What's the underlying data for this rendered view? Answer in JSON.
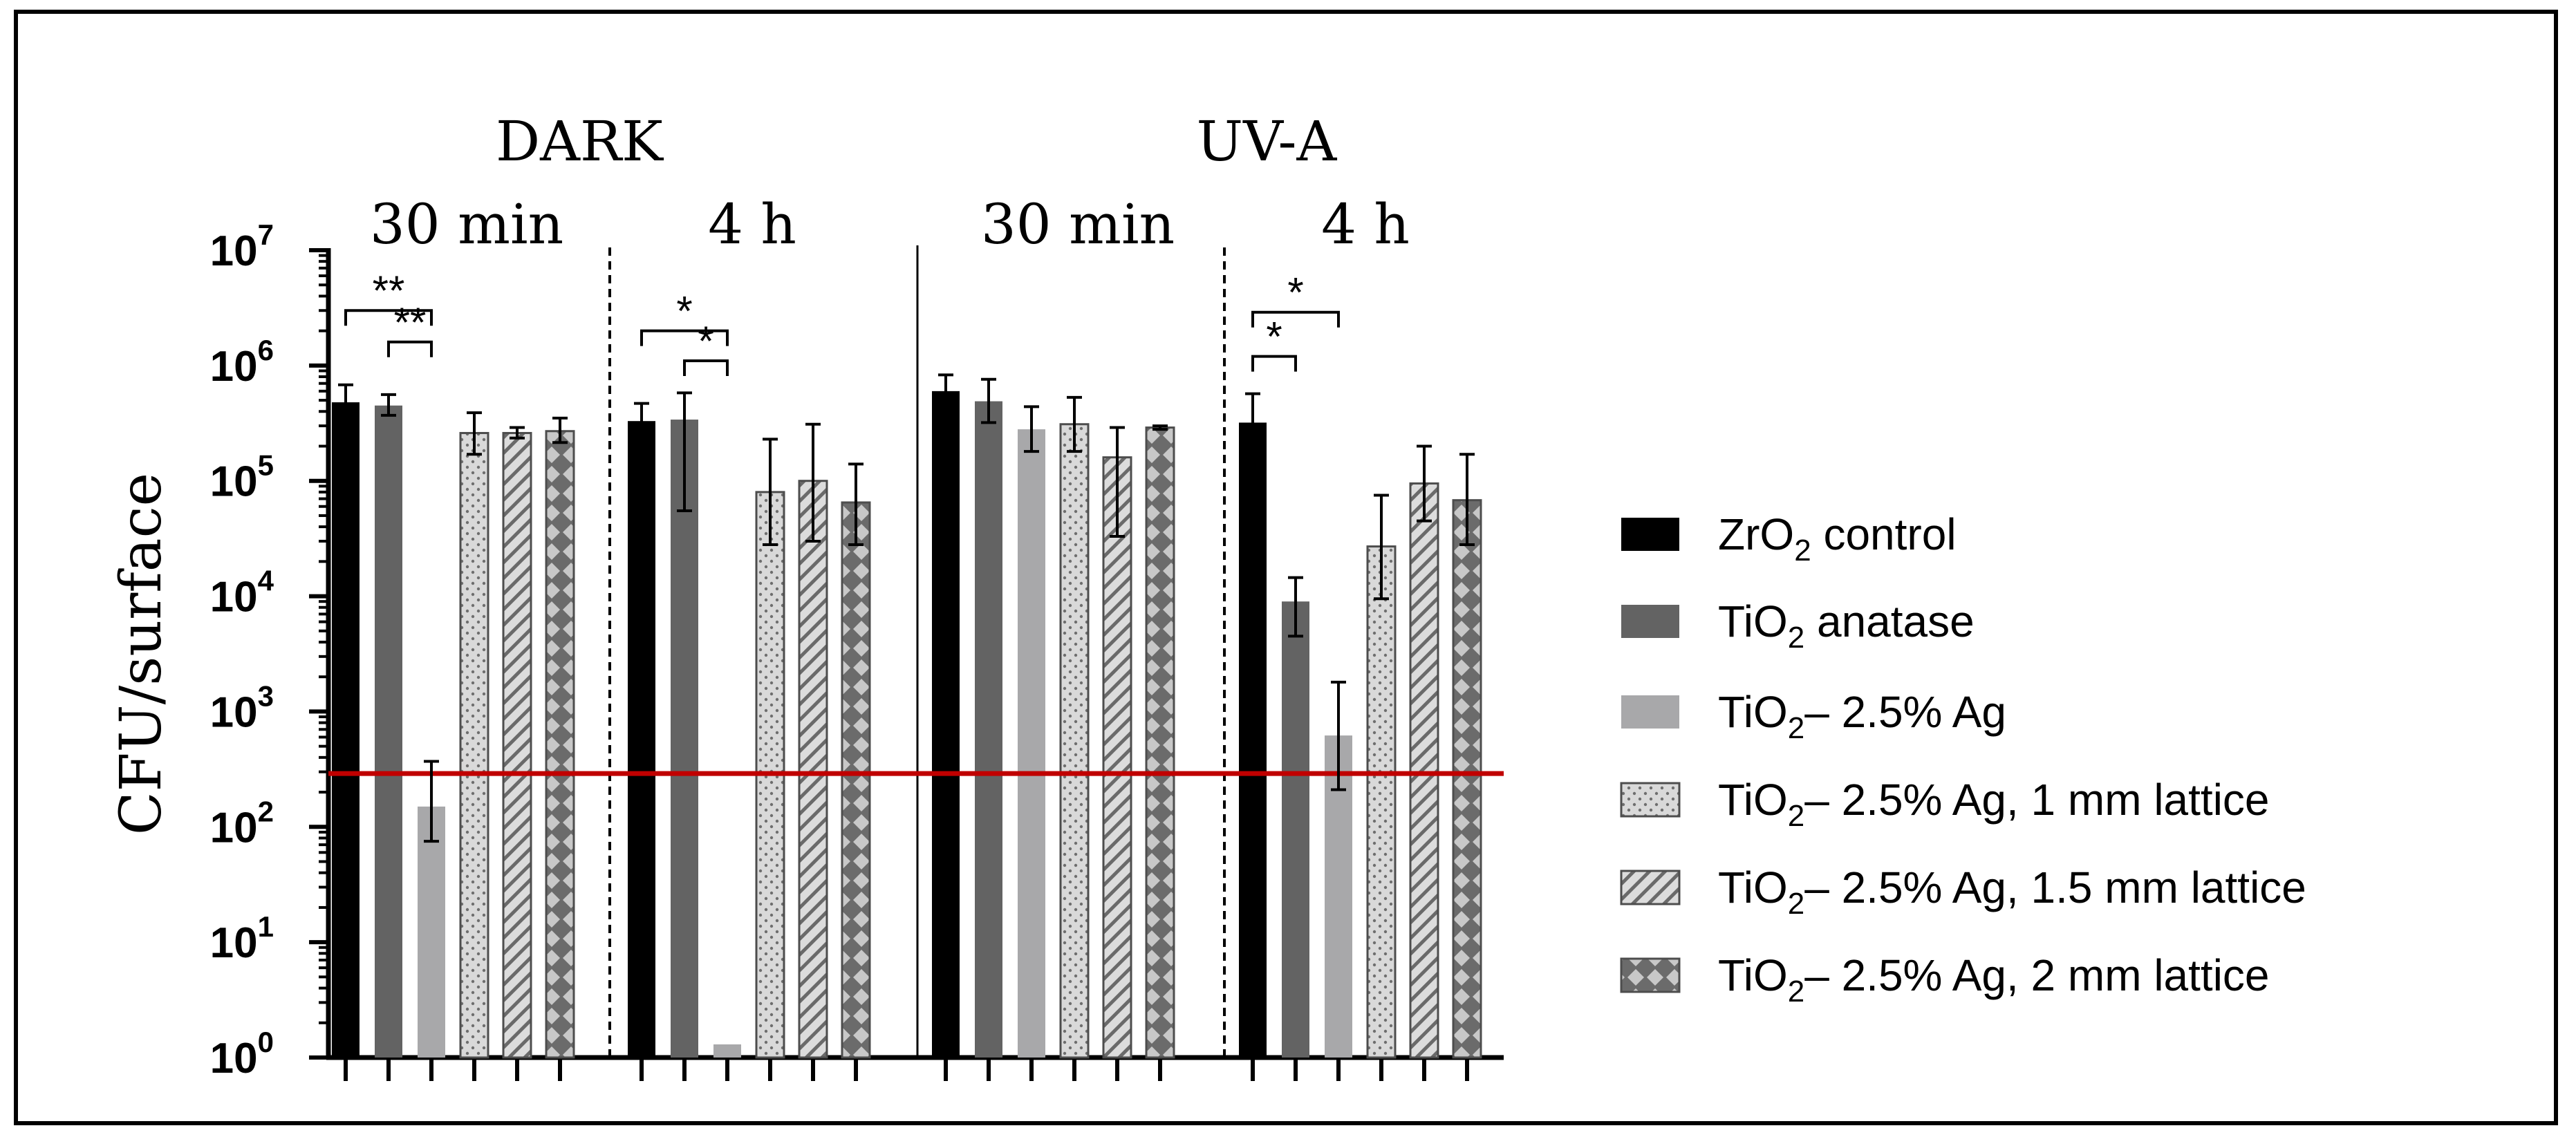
{
  "chart_data": {
    "type": "bar",
    "scale": "log",
    "ylim": [
      1,
      10000000
    ],
    "ylabel": "CFU/surface",
    "y_ticks": [
      {
        "base": "10",
        "exp": "0"
      },
      {
        "base": "10",
        "exp": "1"
      },
      {
        "base": "10",
        "exp": "2"
      },
      {
        "base": "10",
        "exp": "3"
      },
      {
        "base": "10",
        "exp": "4"
      },
      {
        "base": "10",
        "exp": "5"
      },
      {
        "base": "10",
        "exp": "6"
      },
      {
        "base": "10",
        "exp": "7"
      }
    ],
    "conditions": [
      {
        "label": "DARK",
        "groups": [
          "dark_30",
          "dark_4h"
        ]
      },
      {
        "label": "UV-A",
        "groups": [
          "uva_30",
          "uva_4h"
        ]
      }
    ],
    "groups": [
      {
        "id": "dark_30",
        "label": "30 min",
        "values": [
          480000,
          450000,
          150,
          260000,
          260000,
          270000
        ],
        "err_hi": [
          680000,
          560000,
          370,
          390000,
          290000,
          350000
        ],
        "err_lo": [
          380000,
          370000,
          75,
          170000,
          235000,
          215000
        ]
      },
      {
        "id": "dark_4h",
        "label": "4 h",
        "values": [
          330000,
          340000,
          1.3,
          80000,
          100000,
          65000
        ],
        "err_hi": [
          470000,
          580000,
          null,
          230000,
          310000,
          140000
        ],
        "err_lo": [
          250000,
          55000,
          null,
          28000,
          30000,
          28000
        ]
      },
      {
        "id": "uva_30",
        "label": "30 min",
        "values": [
          600000,
          490000,
          280000,
          310000,
          160000,
          290000
        ],
        "err_hi": [
          830000,
          760000,
          440000,
          530000,
          290000,
          300000
        ],
        "err_lo": [
          430000,
          320000,
          180000,
          180000,
          33000,
          280000
        ]
      },
      {
        "id": "uva_4h",
        "label": "4 h",
        "values": [
          320000,
          9000,
          620,
          27000,
          95000,
          68000
        ],
        "err_hi": [
          570000,
          14500,
          1800,
          75000,
          200000,
          170000
        ],
        "err_lo": [
          180000,
          4500,
          210,
          9500,
          45000,
          28000
        ]
      }
    ],
    "series": [
      {
        "name": "ZrO2 control",
        "base": "ZrO",
        "sub": "2",
        "rest": " control",
        "color": "#000000",
        "pattern": "solid"
      },
      {
        "name": "TiO2 anatase",
        "base": "TiO",
        "sub": "2",
        "rest": " anatase",
        "color": "#636363",
        "pattern": "solid"
      },
      {
        "name": "TiO2– 2.5% Ag",
        "base": "TiO",
        "sub": "2",
        "rest": "– 2.5% Ag",
        "color": "#a8a8aa",
        "pattern": "solid"
      },
      {
        "name": "TiO2– 2.5% Ag, 1 mm lattice",
        "base": "TiO",
        "sub": "2",
        "rest": "– 2.5% Ag, 1 mm lattice",
        "color": "#d9d9d9",
        "pattern": "dots"
      },
      {
        "name": "TiO2– 2.5% Ag, 1.5 mm lattice",
        "base": "TiO",
        "sub": "2",
        "rest": "– 2.5% Ag, 1.5 mm lattice",
        "color": "#d9d9d9",
        "pattern": "hatch"
      },
      {
        "name": "TiO2– 2.5% Ag, 2 mm lattice",
        "base": "TiO",
        "sub": "2",
        "rest": "– 2.5% Ag, 2 mm lattice",
        "color": "#6b6b6b",
        "pattern": "diamonds"
      }
    ],
    "detection_limit": {
      "value": 290,
      "color": "#c00000"
    },
    "significance": [
      {
        "group": "dark_30",
        "from": 0,
        "to": 2,
        "y": 3000000,
        "label": "**"
      },
      {
        "group": "dark_30",
        "from": 1,
        "to": 2,
        "y": 1600000,
        "label": "**"
      },
      {
        "group": "dark_4h",
        "from": 0,
        "to": 2,
        "y": 2000000,
        "label": "*"
      },
      {
        "group": "dark_4h",
        "from": 1,
        "to": 2,
        "y": 1100000,
        "label": "*"
      },
      {
        "group": "uva_4h",
        "from": 0,
        "to": 2,
        "y": 2900000,
        "label": "*"
      },
      {
        "group": "uva_4h",
        "from": 0,
        "to": 1,
        "y": 1200000,
        "label": "*"
      }
    ],
    "legend_position": "right"
  }
}
